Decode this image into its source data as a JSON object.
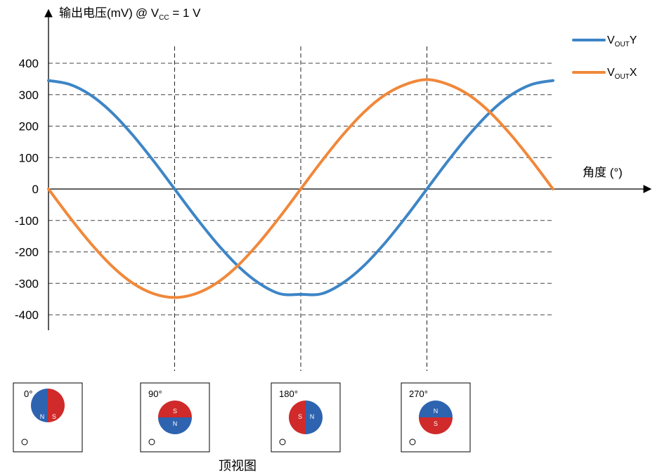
{
  "chart_data": {
    "type": "line",
    "ylabel": {
      "prefix": "输出电压",
      "unit": "(mV)",
      "condition_pre": "@ V",
      "condition_sub": "CC",
      "condition_post": " = 1 V"
    },
    "xlabel": "角度 (°)",
    "ylim": [
      -400,
      400
    ],
    "yticks": [
      400,
      300,
      200,
      100,
      0,
      -100,
      -200,
      -300,
      -400
    ],
    "ytick_labels": [
      "400",
      "300",
      "200",
      "100",
      "0",
      "-100",
      "-200",
      "-300",
      "-400"
    ],
    "xlim": [
      0,
      360
    ],
    "x_reference_lines": [
      90,
      180,
      270
    ],
    "grid": "horizontal dashed",
    "legend_position": "top-right",
    "series": [
      {
        "name": "VOUTY",
        "legend": {
          "main": "V",
          "sub": "OUT",
          "suffix": "Y"
        },
        "color": "#3d85c6",
        "x": [
          0,
          15,
          30,
          45,
          60,
          75,
          90,
          105,
          120,
          135,
          150,
          165,
          180,
          195,
          210,
          225,
          240,
          255,
          270,
          285,
          300,
          315,
          330,
          345,
          360
        ],
        "values": [
          345,
          333,
          299,
          244,
          172,
          89,
          0,
          -89,
          -172,
          -244,
          -299,
          -333,
          -335,
          -333,
          -299,
          -244,
          -172,
          -89,
          0,
          89,
          172,
          244,
          299,
          333,
          345
        ]
      },
      {
        "name": "VOUTX",
        "legend": {
          "main": "V",
          "sub": "OUT",
          "suffix": "X"
        },
        "color": "#f0883a",
        "x": [
          0,
          15,
          30,
          45,
          60,
          75,
          90,
          105,
          120,
          135,
          150,
          165,
          180,
          195,
          210,
          225,
          240,
          255,
          270,
          285,
          300,
          315,
          330,
          345,
          360
        ],
        "values": [
          0,
          -89,
          -172,
          -244,
          -299,
          -333,
          -345,
          -333,
          -299,
          -244,
          -172,
          -89,
          0,
          89,
          172,
          244,
          299,
          333,
          348,
          333,
          299,
          244,
          172,
          89,
          0
        ]
      }
    ]
  },
  "magnet_views": [
    {
      "angle_label": "0°",
      "left_pole": "N",
      "right_pole": "S",
      "split": "vertical",
      "first_color": "#2e63b0",
      "second_color": "#d02a2a"
    },
    {
      "angle_label": "90°",
      "left_pole": "S",
      "right_pole": "N",
      "split": "horizontal",
      "first_color": "#d02a2a",
      "second_color": "#2e63b0"
    },
    {
      "angle_label": "180°",
      "left_pole": "S",
      "right_pole": "N",
      "split": "vertical",
      "first_color": "#d02a2a",
      "second_color": "#2e63b0"
    },
    {
      "angle_label": "270°",
      "left_pole": "N",
      "right_pole": "S",
      "split": "horizontal",
      "first_color": "#2e63b0",
      "second_color": "#d02a2a"
    }
  ],
  "caption": "顶视图"
}
